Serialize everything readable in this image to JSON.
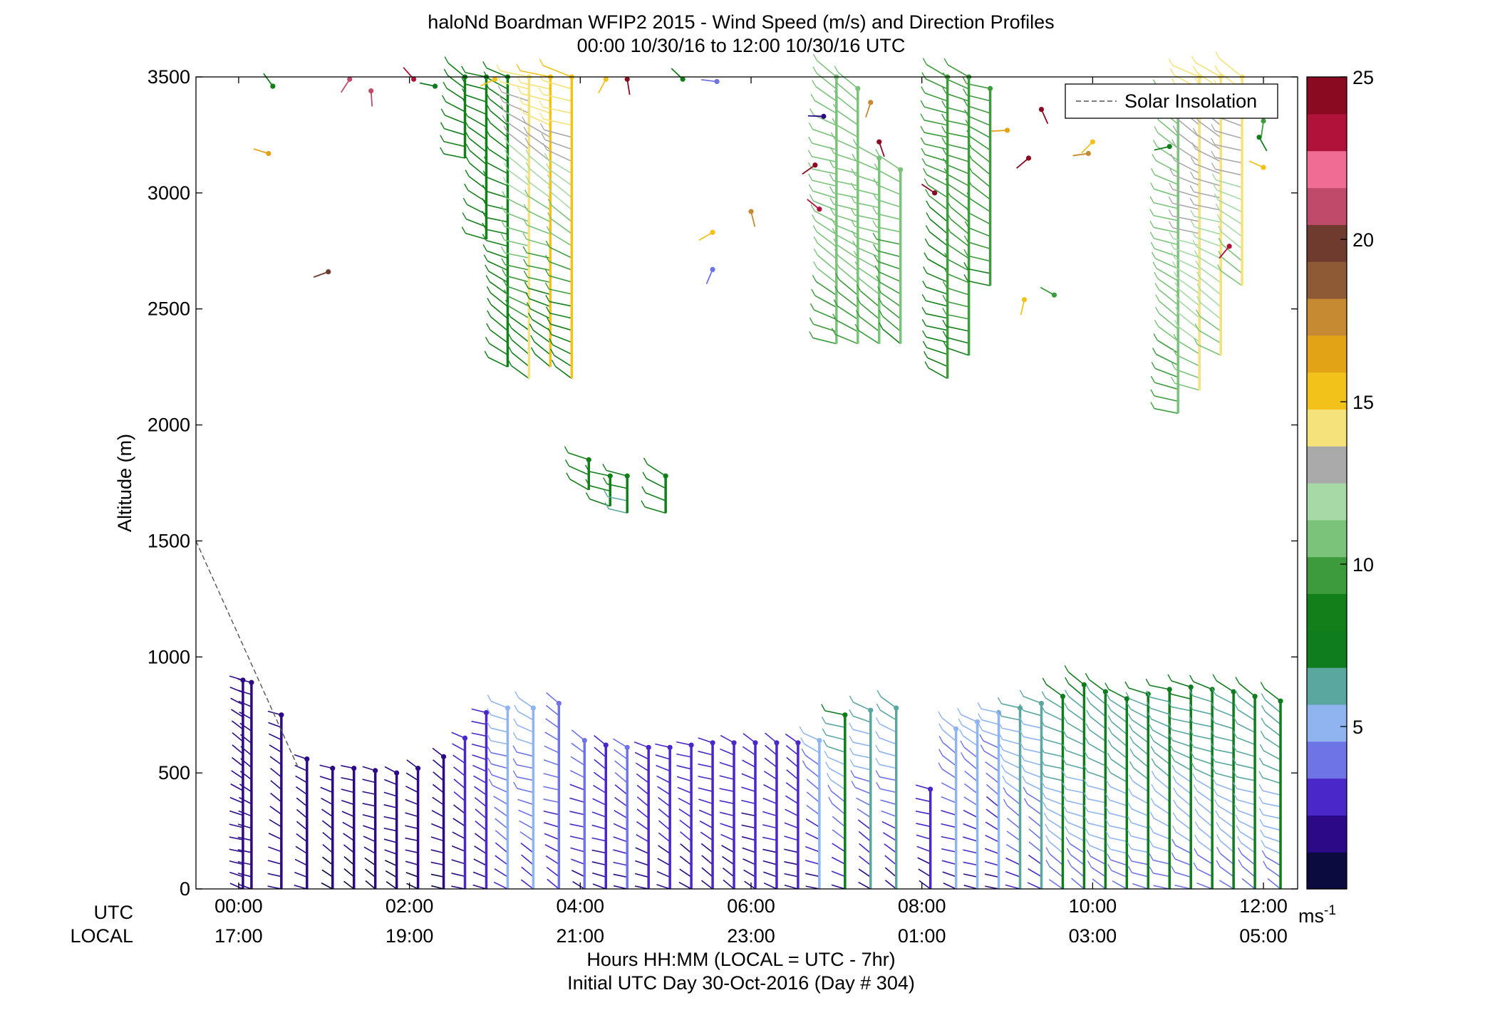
{
  "chart_data": {
    "type": "wind-barb profile (time-height)",
    "title": "haloNd Boardman WFIP2 2015 - Wind Speed (m/s) and Direction Profiles",
    "subtitle": "00:00 10/30/16 to 12:00 10/30/16  UTC",
    "ylabel": "Altitude (m)",
    "ylim": [
      0,
      3500
    ],
    "yticks": [
      0,
      500,
      1000,
      1500,
      2000,
      2500,
      3000,
      3500
    ],
    "xlim_hours_utc": [
      -0.5,
      12.4
    ],
    "xrow_utc_label": "UTC",
    "xrow_local_label": "LOCAL",
    "xticks_utc": [
      "00:00",
      "02:00",
      "04:00",
      "06:00",
      "08:00",
      "10:00",
      "12:00"
    ],
    "xticks_local": [
      "17:00",
      "19:00",
      "21:00",
      "23:00",
      "01:00",
      "03:00",
      "05:00"
    ],
    "xtick_hours": [
      0,
      2,
      4,
      6,
      8,
      10,
      12
    ],
    "xlabel": "Hours HH:MM  (LOCAL = UTC - 7hr)",
    "xlabel2": "Initial UTC Day 30-Oct-2016 (Day # 304)",
    "legend": {
      "label": "Solar Insolation",
      "position": "top-right"
    },
    "solar_insolation_line": {
      "x_hours": [
        -0.5,
        0.7
      ],
      "altitude_m": [
        1500,
        520
      ]
    },
    "colorbar": {
      "ticks": [
        5,
        10,
        15,
        20,
        25
      ],
      "range": [
        0,
        25
      ],
      "unit_base": "ms",
      "unit_exp": "-1",
      "colors": [
        "#0b0b40",
        "#2c0a87",
        "#4a27c8",
        "#6e74e6",
        "#8fb4f0",
        "#5aa7a0",
        "#0f7d1e",
        "#137f1a",
        "#3d9b3d",
        "#7bc27b",
        "#a7d9a7",
        "#aaaaaa",
        "#f6e27a",
        "#f2c21a",
        "#e2a416",
        "#c58a32",
        "#8e5a36",
        "#6e3b2e",
        "#c04a6a",
        "#f06c94",
        "#b0123a",
        "#8a0a22"
      ]
    },
    "profiles": [
      {
        "t": 0.05,
        "lo": 0,
        "hi": 900,
        "spd": [
          2,
          2
        ]
      },
      {
        "t": 0.15,
        "lo": 0,
        "hi": 890,
        "spd": [
          2,
          2
        ]
      },
      {
        "t": 0.5,
        "lo": 0,
        "hi": 750,
        "spd": [
          2,
          2
        ]
      },
      {
        "t": 0.8,
        "lo": 0,
        "hi": 560,
        "spd": [
          1.5,
          1.5
        ]
      },
      {
        "t": 1.1,
        "lo": 0,
        "hi": 520,
        "spd": [
          1,
          1.5
        ]
      },
      {
        "t": 1.35,
        "lo": 0,
        "hi": 520,
        "spd": [
          1,
          1.5
        ]
      },
      {
        "t": 1.6,
        "lo": 0,
        "hi": 510,
        "spd": [
          1,
          1.5
        ]
      },
      {
        "t": 1.85,
        "lo": 0,
        "hi": 500,
        "spd": [
          1,
          1.5
        ]
      },
      {
        "t": 2.1,
        "lo": 0,
        "hi": 520,
        "spd": [
          1,
          2
        ]
      },
      {
        "t": 2.4,
        "lo": 0,
        "hi": 570,
        "spd": [
          1,
          2
        ]
      },
      {
        "t": 2.65,
        "lo": 0,
        "hi": 650,
        "spd": [
          2,
          2.5
        ]
      },
      {
        "t": 2.9,
        "lo": 0,
        "hi": 760,
        "spd": [
          2,
          3
        ]
      },
      {
        "t": 3.15,
        "lo": 0,
        "hi": 780,
        "spd": [
          3,
          5
        ]
      },
      {
        "t": 3.45,
        "lo": 0,
        "hi": 780,
        "spd": [
          3,
          5
        ]
      },
      {
        "t": 3.75,
        "lo": 0,
        "hi": 800,
        "spd": [
          3,
          4
        ]
      },
      {
        "t": 4.05,
        "lo": 0,
        "hi": 640,
        "spd": [
          2,
          4
        ]
      },
      {
        "t": 4.3,
        "lo": 0,
        "hi": 620,
        "spd": [
          2,
          3
        ]
      },
      {
        "t": 4.55,
        "lo": 0,
        "hi": 610,
        "spd": [
          2,
          4
        ]
      },
      {
        "t": 4.8,
        "lo": 0,
        "hi": 610,
        "spd": [
          2,
          3
        ]
      },
      {
        "t": 5.05,
        "lo": 0,
        "hi": 610,
        "spd": [
          2,
          3
        ]
      },
      {
        "t": 5.3,
        "lo": 0,
        "hi": 620,
        "spd": [
          2,
          3
        ]
      },
      {
        "t": 5.55,
        "lo": 0,
        "hi": 630,
        "spd": [
          2,
          3
        ]
      },
      {
        "t": 5.8,
        "lo": 0,
        "hi": 630,
        "spd": [
          2,
          3
        ]
      },
      {
        "t": 6.05,
        "lo": 0,
        "hi": 630,
        "spd": [
          1.5,
          3
        ]
      },
      {
        "t": 6.3,
        "lo": 0,
        "hi": 630,
        "spd": [
          2,
          3
        ]
      },
      {
        "t": 6.55,
        "lo": 0,
        "hi": 630,
        "spd": [
          2,
          3
        ]
      },
      {
        "t": 6.8,
        "lo": 0,
        "hi": 640,
        "spd": [
          2,
          5
        ]
      },
      {
        "t": 7.1,
        "lo": 0,
        "hi": 750,
        "spd": [
          2,
          7
        ]
      },
      {
        "t": 7.4,
        "lo": 0,
        "hi": 770,
        "spd": [
          2,
          6
        ]
      },
      {
        "t": 7.7,
        "lo": 0,
        "hi": 780,
        "spd": [
          2,
          6
        ]
      },
      {
        "t": 8.1,
        "lo": 0,
        "hi": 430,
        "spd": [
          2,
          3
        ]
      },
      {
        "t": 8.4,
        "lo": 0,
        "hi": 690,
        "spd": [
          2,
          5
        ]
      },
      {
        "t": 8.65,
        "lo": 0,
        "hi": 720,
        "spd": [
          2,
          5
        ]
      },
      {
        "t": 8.9,
        "lo": 0,
        "hi": 760,
        "spd": [
          2,
          5
        ]
      },
      {
        "t": 9.15,
        "lo": 0,
        "hi": 780,
        "spd": [
          3,
          6
        ]
      },
      {
        "t": 9.4,
        "lo": 0,
        "hi": 800,
        "spd": [
          3,
          6
        ]
      },
      {
        "t": 9.65,
        "lo": 0,
        "hi": 830,
        "spd": [
          4,
          7
        ]
      },
      {
        "t": 9.9,
        "lo": 0,
        "hi": 880,
        "spd": [
          4,
          7
        ]
      },
      {
        "t": 10.15,
        "lo": 0,
        "hi": 850,
        "spd": [
          4,
          7
        ]
      },
      {
        "t": 10.4,
        "lo": 0,
        "hi": 820,
        "spd": [
          4,
          7
        ]
      },
      {
        "t": 10.65,
        "lo": 0,
        "hi": 840,
        "spd": [
          4,
          7
        ]
      },
      {
        "t": 10.9,
        "lo": 0,
        "hi": 860,
        "spd": [
          4,
          7
        ]
      },
      {
        "t": 11.15,
        "lo": 0,
        "hi": 870,
        "spd": [
          4,
          7
        ]
      },
      {
        "t": 11.4,
        "lo": 0,
        "hi": 860,
        "spd": [
          4,
          7
        ]
      },
      {
        "t": 11.65,
        "lo": 0,
        "hi": 850,
        "spd": [
          4,
          7
        ]
      },
      {
        "t": 11.9,
        "lo": 0,
        "hi": 830,
        "spd": [
          4,
          7
        ]
      },
      {
        "t": 12.2,
        "lo": 0,
        "hi": 810,
        "spd": [
          4,
          7
        ]
      },
      {
        "t": 2.65,
        "lo": 3150,
        "hi": 3500,
        "spd": [
          8,
          8
        ]
      },
      {
        "t": 2.9,
        "lo": 2800,
        "hi": 3500,
        "spd": [
          8,
          8
        ]
      },
      {
        "t": 3.15,
        "lo": 2250,
        "hi": 3500,
        "spd": [
          8,
          9
        ]
      },
      {
        "t": 3.4,
        "lo": 2200,
        "hi": 3500,
        "spd": [
          8,
          14
        ]
      },
      {
        "t": 3.65,
        "lo": 2250,
        "hi": 3500,
        "spd": [
          7,
          15
        ]
      },
      {
        "t": 3.9,
        "lo": 2200,
        "hi": 3500,
        "spd": [
          7,
          15
        ]
      },
      {
        "t": 4.1,
        "lo": 1720,
        "hi": 1850,
        "spd": [
          8,
          8
        ]
      },
      {
        "t": 4.35,
        "lo": 1650,
        "hi": 1780,
        "spd": [
          8,
          8
        ]
      },
      {
        "t": 4.55,
        "lo": 1620,
        "hi": 1780,
        "spd": [
          6,
          8
        ]
      },
      {
        "t": 5.0,
        "lo": 1620,
        "hi": 1780,
        "spd": [
          8,
          8
        ]
      },
      {
        "t": 7.0,
        "lo": 2350,
        "hi": 3500,
        "spd": [
          10,
          11
        ]
      },
      {
        "t": 7.25,
        "lo": 2350,
        "hi": 3450,
        "spd": [
          10,
          11
        ]
      },
      {
        "t": 7.5,
        "lo": 2350,
        "hi": 3150,
        "spd": [
          10,
          11
        ]
      },
      {
        "t": 7.75,
        "lo": 2350,
        "hi": 3100,
        "spd": [
          9,
          11
        ]
      },
      {
        "t": 8.3,
        "lo": 2200,
        "hi": 3500,
        "spd": [
          8,
          10
        ]
      },
      {
        "t": 8.55,
        "lo": 2300,
        "hi": 3500,
        "spd": [
          9,
          10
        ]
      },
      {
        "t": 8.8,
        "lo": 2600,
        "hi": 3450,
        "spd": [
          9,
          10
        ]
      },
      {
        "t": 11.0,
        "lo": 2050,
        "hi": 3400,
        "spd": [
          10,
          11
        ]
      },
      {
        "t": 11.25,
        "lo": 2150,
        "hi": 3500,
        "spd": [
          11,
          14
        ]
      },
      {
        "t": 11.5,
        "lo": 2300,
        "hi": 3500,
        "spd": [
          11,
          14
        ]
      },
      {
        "t": 11.75,
        "lo": 2600,
        "hi": 3500,
        "spd": [
          11,
          14
        ]
      }
    ],
    "scattered_barbs": [
      {
        "t": 0.4,
        "alt": 3460,
        "spd": 8
      },
      {
        "t": 0.35,
        "alt": 3170,
        "spd": 16
      },
      {
        "t": 1.05,
        "alt": 2660,
        "spd": 20
      },
      {
        "t": 1.3,
        "alt": 3490,
        "spd": 21
      },
      {
        "t": 1.55,
        "alt": 3440,
        "spd": 21
      },
      {
        "t": 2.05,
        "alt": 3490,
        "spd": 23
      },
      {
        "t": 2.3,
        "alt": 3460,
        "spd": 7
      },
      {
        "t": 3.0,
        "alt": 3490,
        "spd": 15
      },
      {
        "t": 4.3,
        "alt": 3490,
        "spd": 15
      },
      {
        "t": 4.55,
        "alt": 3490,
        "spd": 25
      },
      {
        "t": 5.2,
        "alt": 3490,
        "spd": 8
      },
      {
        "t": 5.6,
        "alt": 3480,
        "spd": 4
      },
      {
        "t": 5.55,
        "alt": 2830,
        "spd": 15
      },
      {
        "t": 5.55,
        "alt": 2670,
        "spd": 4
      },
      {
        "t": 6.0,
        "alt": 2920,
        "spd": 18
      },
      {
        "t": 6.8,
        "alt": 2930,
        "spd": 23
      },
      {
        "t": 6.85,
        "alt": 3330,
        "spd": 2
      },
      {
        "t": 6.75,
        "alt": 3120,
        "spd": 24
      },
      {
        "t": 7.4,
        "alt": 3390,
        "spd": 18
      },
      {
        "t": 7.5,
        "alt": 3220,
        "spd": 25
      },
      {
        "t": 8.15,
        "alt": 3000,
        "spd": 25
      },
      {
        "t": 9.0,
        "alt": 3270,
        "spd": 16
      },
      {
        "t": 9.25,
        "alt": 3150,
        "spd": 25
      },
      {
        "t": 9.2,
        "alt": 2540,
        "spd": 15
      },
      {
        "t": 9.4,
        "alt": 3360,
        "spd": 25
      },
      {
        "t": 9.55,
        "alt": 2560,
        "spd": 10
      },
      {
        "t": 9.95,
        "alt": 3170,
        "spd": 18
      },
      {
        "t": 10.0,
        "alt": 3220,
        "spd": 15
      },
      {
        "t": 12.0,
        "alt": 3310,
        "spd": 10
      },
      {
        "t": 11.95,
        "alt": 3240,
        "spd": 8
      },
      {
        "t": 12.0,
        "alt": 3110,
        "spd": 15
      },
      {
        "t": 10.9,
        "alt": 3200,
        "spd": 8
      },
      {
        "t": 11.6,
        "alt": 2770,
        "spd": 23
      }
    ]
  }
}
